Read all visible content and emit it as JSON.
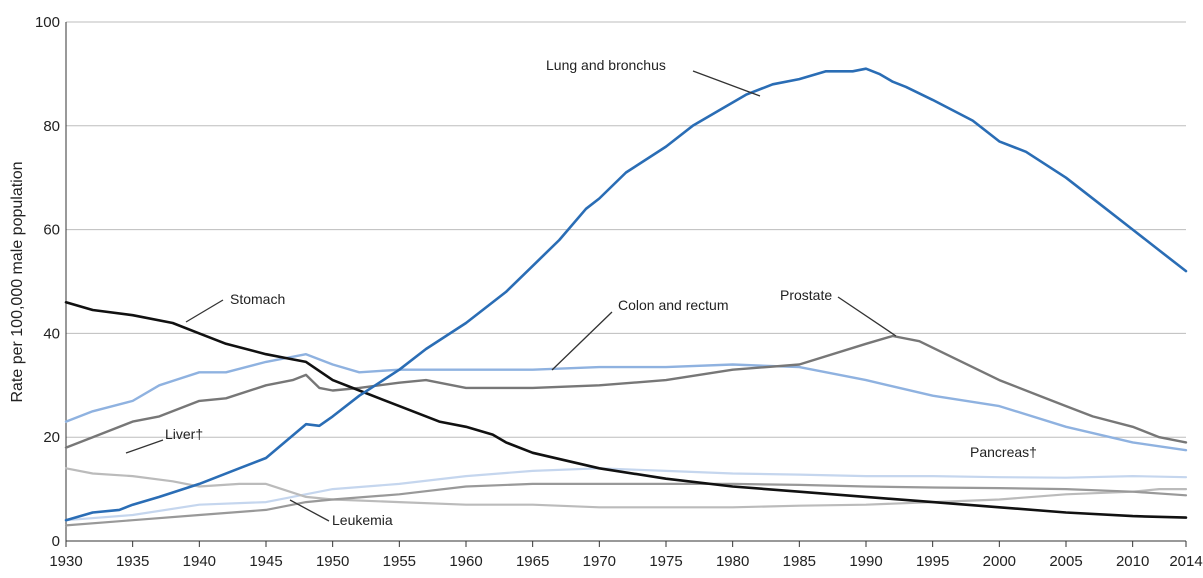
{
  "chart_data": {
    "type": "line",
    "title": "",
    "xlabel": "",
    "ylabel": "Rate per 100,000 male population",
    "xlim": [
      1930,
      2014
    ],
    "ylim": [
      0,
      100
    ],
    "x_ticks": [
      "1930",
      "1935",
      "1940",
      "1945",
      "1950",
      "1955",
      "1960",
      "1965",
      "1970",
      "1975",
      "1980",
      "1985",
      "1990",
      "1995",
      "2000",
      "2005",
      "2010",
      "2014"
    ],
    "y_ticks": [
      "0",
      "20",
      "40",
      "60",
      "80",
      "100"
    ],
    "grid": "horizontal",
    "series": [
      {
        "name": "Lung and bronchus",
        "color": "#2a6db5",
        "points": [
          [
            1930,
            4
          ],
          [
            1932,
            5.5
          ],
          [
            1934,
            6
          ],
          [
            1935,
            7
          ],
          [
            1937,
            8.5
          ],
          [
            1940,
            11
          ],
          [
            1943,
            14
          ],
          [
            1945,
            16
          ],
          [
            1948,
            22.5
          ],
          [
            1949,
            22.2
          ],
          [
            1950,
            24
          ],
          [
            1952,
            28
          ],
          [
            1955,
            33
          ],
          [
            1957,
            37
          ],
          [
            1960,
            42
          ],
          [
            1963,
            48
          ],
          [
            1965,
            53
          ],
          [
            1967,
            58
          ],
          [
            1969,
            64
          ],
          [
            1970,
            66
          ],
          [
            1972,
            71
          ],
          [
            1975,
            76
          ],
          [
            1977,
            80
          ],
          [
            1979,
            83
          ],
          [
            1981,
            86
          ],
          [
            1983,
            88
          ],
          [
            1985,
            89
          ],
          [
            1987,
            90.5
          ],
          [
            1989,
            90.5
          ],
          [
            1990,
            91
          ],
          [
            1991,
            90
          ],
          [
            1992,
            88.5
          ],
          [
            1993,
            87.5
          ],
          [
            1995,
            85
          ],
          [
            1998,
            81
          ],
          [
            2000,
            77
          ],
          [
            2002,
            75
          ],
          [
            2005,
            70
          ],
          [
            2008,
            64
          ],
          [
            2010,
            60
          ],
          [
            2012,
            56
          ],
          [
            2014,
            52
          ]
        ]
      },
      {
        "name": "Stomach",
        "color": "#111111",
        "points": [
          [
            1930,
            46
          ],
          [
            1932,
            44.5
          ],
          [
            1935,
            43.5
          ],
          [
            1938,
            42
          ],
          [
            1940,
            40
          ],
          [
            1942,
            38
          ],
          [
            1945,
            36
          ],
          [
            1947,
            35
          ],
          [
            1948,
            34.5
          ],
          [
            1950,
            31
          ],
          [
            1952,
            29
          ],
          [
            1955,
            26
          ],
          [
            1958,
            23
          ],
          [
            1960,
            22
          ],
          [
            1962,
            20.5
          ],
          [
            1963,
            19
          ],
          [
            1965,
            17
          ],
          [
            1970,
            14
          ],
          [
            1975,
            12
          ],
          [
            1980,
            10.5
          ],
          [
            1985,
            9.5
          ],
          [
            1990,
            8.5
          ],
          [
            1995,
            7.5
          ],
          [
            2000,
            6.5
          ],
          [
            2005,
            5.5
          ],
          [
            2010,
            4.8
          ],
          [
            2014,
            4.5
          ]
        ]
      },
      {
        "name": "Colon and rectum",
        "color": "#8fb2e0",
        "points": [
          [
            1930,
            23
          ],
          [
            1932,
            25
          ],
          [
            1935,
            27
          ],
          [
            1937,
            30
          ],
          [
            1940,
            32.5
          ],
          [
            1942,
            32.5
          ],
          [
            1945,
            34.5
          ],
          [
            1948,
            36
          ],
          [
            1950,
            34
          ],
          [
            1952,
            32.5
          ],
          [
            1955,
            33
          ],
          [
            1960,
            33
          ],
          [
            1965,
            33
          ],
          [
            1970,
            33.5
          ],
          [
            1975,
            33.5
          ],
          [
            1980,
            34
          ],
          [
            1985,
            33.5
          ],
          [
            1990,
            31
          ],
          [
            1995,
            28
          ],
          [
            2000,
            26
          ],
          [
            2005,
            22
          ],
          [
            2010,
            19
          ],
          [
            2014,
            17.5
          ]
        ]
      },
      {
        "name": "Prostate",
        "color": "#777777",
        "points": [
          [
            1930,
            18
          ],
          [
            1932,
            20
          ],
          [
            1935,
            23
          ],
          [
            1937,
            24
          ],
          [
            1940,
            27
          ],
          [
            1942,
            27.5
          ],
          [
            1945,
            30
          ],
          [
            1947,
            31
          ],
          [
            1948,
            32
          ],
          [
            1949,
            29.5
          ],
          [
            1950,
            29
          ],
          [
            1952,
            29.5
          ],
          [
            1955,
            30.5
          ],
          [
            1957,
            31
          ],
          [
            1960,
            29.5
          ],
          [
            1965,
            29.5
          ],
          [
            1970,
            30
          ],
          [
            1975,
            31
          ],
          [
            1980,
            33
          ],
          [
            1985,
            34
          ],
          [
            1990,
            38
          ],
          [
            1992,
            39.5
          ],
          [
            1994,
            38.5
          ],
          [
            1996,
            36
          ],
          [
            2000,
            31
          ],
          [
            2003,
            28
          ],
          [
            2005,
            26
          ],
          [
            2007,
            24
          ],
          [
            2010,
            22
          ],
          [
            2012,
            20
          ],
          [
            2014,
            19
          ]
        ]
      },
      {
        "name": "Pancreas†",
        "color": "#c5d6ee",
        "points": [
          [
            1930,
            4
          ],
          [
            1935,
            5
          ],
          [
            1940,
            7
          ],
          [
            1945,
            7.5
          ],
          [
            1950,
            10
          ],
          [
            1955,
            11
          ],
          [
            1960,
            12.5
          ],
          [
            1965,
            13.5
          ],
          [
            1970,
            14
          ],
          [
            1975,
            13.5
          ],
          [
            1980,
            13
          ],
          [
            1985,
            12.8
          ],
          [
            1990,
            12.5
          ],
          [
            1995,
            12.5
          ],
          [
            2000,
            12.3
          ],
          [
            2005,
            12.2
          ],
          [
            2010,
            12.5
          ],
          [
            2014,
            12.3
          ]
        ]
      },
      {
        "name": "Liver†",
        "color": "#bbbbbb",
        "points": [
          [
            1930,
            14
          ],
          [
            1932,
            13
          ],
          [
            1935,
            12.5
          ],
          [
            1938,
            11.5
          ],
          [
            1940,
            10.5
          ],
          [
            1943,
            11
          ],
          [
            1945,
            11
          ],
          [
            1948,
            8.5
          ],
          [
            1950,
            8
          ],
          [
            1955,
            7.5
          ],
          [
            1960,
            7
          ],
          [
            1965,
            7
          ],
          [
            1970,
            6.5
          ],
          [
            1975,
            6.5
          ],
          [
            1980,
            6.5
          ],
          [
            1985,
            6.8
          ],
          [
            1990,
            7
          ],
          [
            1995,
            7.5
          ],
          [
            2000,
            8
          ],
          [
            2005,
            9
          ],
          [
            2010,
            9.5
          ],
          [
            2012,
            10
          ],
          [
            2014,
            10
          ]
        ]
      },
      {
        "name": "Leukemia",
        "color": "#999999",
        "points": [
          [
            1930,
            3
          ],
          [
            1935,
            4
          ],
          [
            1940,
            5
          ],
          [
            1945,
            6
          ],
          [
            1948,
            7.5
          ],
          [
            1950,
            8
          ],
          [
            1955,
            9
          ],
          [
            1960,
            10.5
          ],
          [
            1965,
            11
          ],
          [
            1970,
            11
          ],
          [
            1975,
            11
          ],
          [
            1980,
            11
          ],
          [
            1985,
            10.8
          ],
          [
            1990,
            10.5
          ],
          [
            1995,
            10.3
          ],
          [
            2000,
            10.2
          ],
          [
            2005,
            10
          ],
          [
            2010,
            9.5
          ],
          [
            2014,
            8.8
          ]
        ]
      }
    ],
    "annotations": [
      {
        "text": "Lung and bronchus",
        "series": "Lung and bronchus"
      },
      {
        "text": "Stomach",
        "series": "Stomach"
      },
      {
        "text": "Colon and rectum",
        "series": "Colon and rectum"
      },
      {
        "text": "Prostate",
        "series": "Prostate"
      },
      {
        "text": "Pancreas†",
        "series": "Pancreas†"
      },
      {
        "text": "Liver†",
        "series": "Liver†"
      },
      {
        "text": "Leukemia",
        "series": "Leukemia"
      }
    ]
  }
}
